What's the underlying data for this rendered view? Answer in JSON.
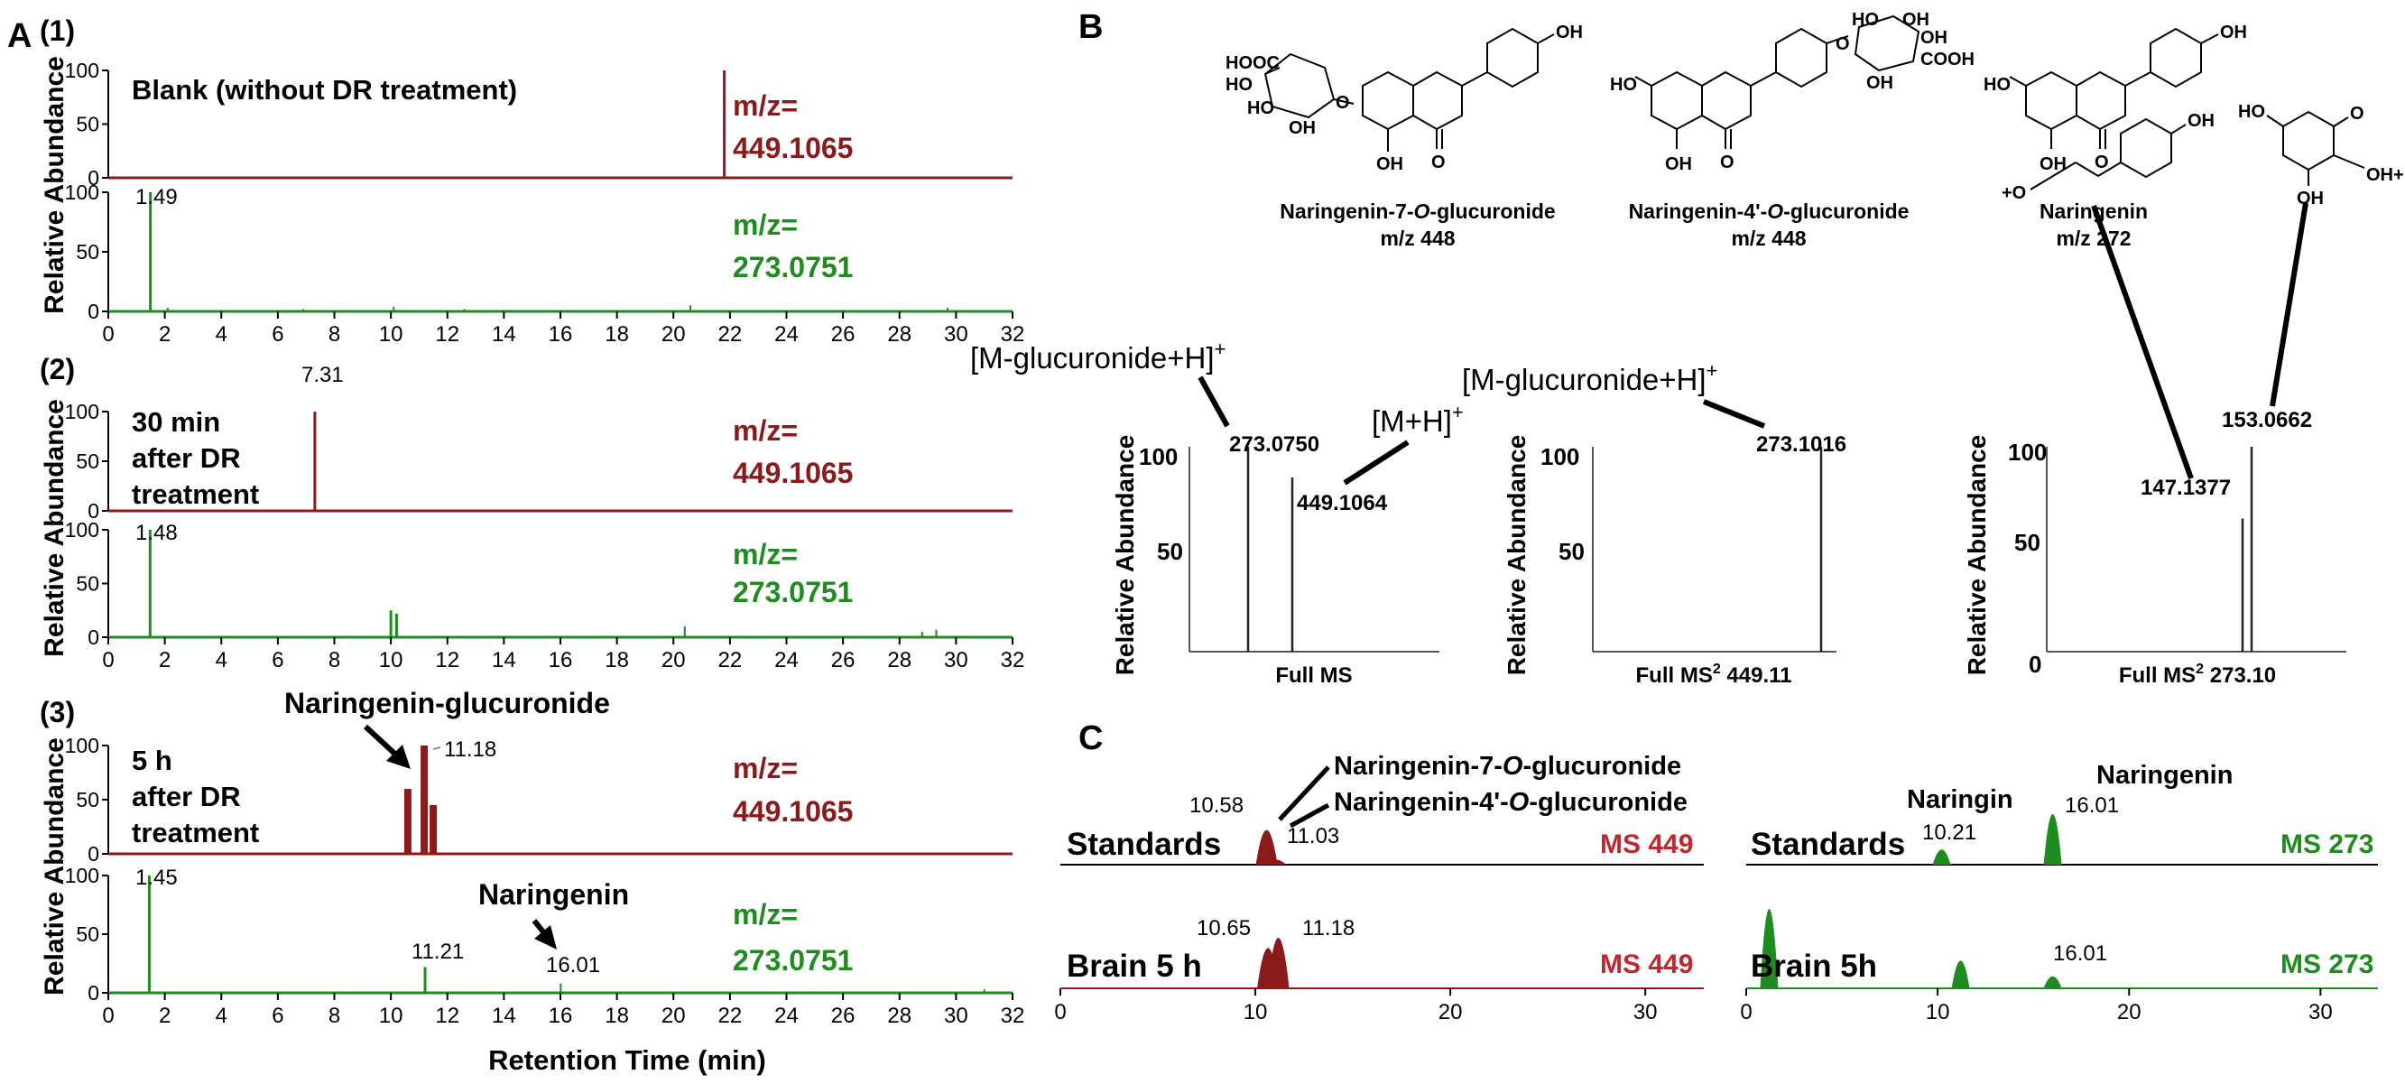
{
  "panel_letters": {
    "a": "A",
    "b": "B",
    "c": "C"
  },
  "colors": {
    "red": "#8b1a1a",
    "green": "#1e8c1e",
    "black": "#000000"
  },
  "panel_a": {
    "y_label": "Relative Abundance",
    "x_label": "Retention Time (min)",
    "x_ticks": [
      "0",
      "2",
      "4",
      "6",
      "8",
      "10",
      "12",
      "14",
      "16",
      "18",
      "20",
      "22",
      "24",
      "26",
      "28",
      "30",
      "32"
    ],
    "y_ticks": [
      "0",
      "50",
      "100"
    ],
    "mz_label": "m/z=",
    "mz_red": "449.1065",
    "mz_green": "273.0751",
    "rows": [
      {
        "num": "(1)",
        "cond": [
          "Blank (without DR treatment)"
        ],
        "red_peak": "",
        "green_peak": "1.49"
      },
      {
        "num": "(2)",
        "cond": [
          "30 min",
          "after DR",
          "treatment"
        ],
        "red_peak": "7.31",
        "green_peak": "1.48"
      },
      {
        "num": "(3)",
        "cond": [
          "5 h",
          "after DR",
          "treatment"
        ],
        "red_peak": "11.18",
        "green_peak": "1.45",
        "green_peak2": "11.21",
        "green_peak3": "16.01"
      }
    ],
    "annot_glucuronide": "Naringenin-glucuronide",
    "annot_naringenin": "Naringenin"
  },
  "panel_b": {
    "compounds": [
      {
        "name": "Naringenin-7-",
        "name_it": "O",
        "name_end": "-glucuronide",
        "mz": "m/z  448"
      },
      {
        "name": "Naringenin-4'-",
        "name_it": "O",
        "name_end": "-glucuronide",
        "mz": "m/z  448"
      },
      {
        "name": "Naringenin",
        "name_it": "",
        "name_end": "",
        "mz": "m/z  272"
      }
    ],
    "atoms": {
      "oh": "OH",
      "ho": "HO",
      "o": "O",
      "hooc": "HOOC",
      "cooh": "COOH",
      "ion_left": "+O",
      "ion_right": "OH+"
    },
    "y_label": "Relative Abundance",
    "ticks": {
      "t100": "100",
      "t50": "50",
      "t0": "0"
    },
    "spectra": [
      {
        "label": "Full MS",
        "peaks": [
          "273.0750",
          "449.1064"
        ],
        "ions": [
          "[M-glucuronide+H]+",
          "[M+H]+"
        ]
      },
      {
        "label": "Full MS2 449.11",
        "peaks": [
          "273.1016"
        ],
        "ions": [
          "[M-glucuronide+H]+"
        ]
      },
      {
        "label": "Full MS2 273.10",
        "peaks": [
          "147.1377",
          "153.0662"
        ],
        "ions": []
      }
    ]
  },
  "panel_c": {
    "compound_labels": [
      "Naringenin-7-O-glucuronide",
      "Naringenin-4'-O-glucuronide"
    ],
    "left": {
      "row1_label": "Standards",
      "row2_label": "Brain 5 h",
      "ms": "MS 449",
      "peaks1": [
        "10.58",
        "11.03"
      ],
      "peaks2": [
        "10.65",
        "11.18"
      ],
      "x_ticks": [
        "0",
        "10",
        "20",
        "30"
      ]
    },
    "right": {
      "row1_label": "Standards",
      "row2_label": "Brain 5h",
      "ms": "MS 273",
      "naringin": "Naringin",
      "naringenin": "Naringenin",
      "peaks1": [
        "10.21",
        "16.01"
      ],
      "peaks2": [
        "16.01"
      ],
      "x_ticks": [
        "0",
        "10",
        "20",
        "30"
      ]
    }
  },
  "chart_data": [
    {
      "type": "line",
      "title": "Panel A (1) Blank (without DR treatment)",
      "xlabel": "Retention Time (min)",
      "ylabel": "Relative Abundance",
      "xlim": [
        0,
        32
      ],
      "ylim": [
        0,
        100
      ],
      "series": [
        {
          "name": "m/z= 449.1065",
          "x": [
            21.8
          ],
          "y": [
            100
          ]
        },
        {
          "name": "m/z= 273.0751",
          "x": [
            1.49,
            2.1,
            6.9,
            10.1,
            12.6,
            20.6,
            29.7
          ],
          "y": [
            100,
            3,
            2,
            4,
            2,
            5,
            3
          ]
        }
      ]
    },
    {
      "type": "line",
      "title": "Panel A (2) 30 min after DR treatment",
      "xlabel": "Retention Time (min)",
      "ylabel": "Relative Abundance",
      "xlim": [
        0,
        32
      ],
      "ylim": [
        0,
        100
      ],
      "series": [
        {
          "name": "m/z= 449.1065",
          "x": [
            7.31
          ],
          "y": [
            100
          ]
        },
        {
          "name": "m/z= 273.0751",
          "x": [
            1.48,
            10.0,
            10.2,
            20.4,
            28.8,
            29.3
          ],
          "y": [
            100,
            25,
            22,
            10,
            5,
            7
          ]
        }
      ]
    },
    {
      "type": "line",
      "title": "Panel A (3) 5 h after DR treatment",
      "xlabel": "Retention Time (min)",
      "ylabel": "Relative Abundance",
      "xlim": [
        0,
        32
      ],
      "ylim": [
        0,
        100
      ],
      "series": [
        {
          "name": "m/z= 449.1065",
          "x": [
            10.6,
            11.18,
            11.5
          ],
          "y": [
            60,
            100,
            45
          ]
        },
        {
          "name": "m/z= 273.0751",
          "x": [
            1.45,
            11.21,
            16.01,
            31.0
          ],
          "y": [
            100,
            22,
            8,
            3
          ]
        }
      ]
    },
    {
      "type": "bar",
      "title": "Full MS",
      "ylabel": "Relative Abundance",
      "categories": [
        "273.0750",
        "449.1064"
      ],
      "values": [
        100,
        85
      ]
    },
    {
      "type": "bar",
      "title": "Full MS2 449.11",
      "ylabel": "Relative Abundance",
      "categories": [
        "273.1016"
      ],
      "values": [
        100
      ]
    },
    {
      "type": "bar",
      "title": "Full MS2 273.10",
      "ylabel": "Relative Abundance",
      "categories": [
        "147.1377",
        "153.0662"
      ],
      "values": [
        65,
        100
      ]
    },
    {
      "type": "line",
      "title": "Panel C MS 449",
      "xlim": [
        0,
        33
      ],
      "series": [
        {
          "name": "Standards",
          "x": [
            10.58,
            11.03
          ],
          "y": [
            100,
            15
          ]
        },
        {
          "name": "Brain 5 h",
          "x": [
            10.65,
            11.18
          ],
          "y": [
            80,
            100
          ]
        }
      ]
    },
    {
      "type": "line",
      "title": "Panel C MS 273",
      "xlim": [
        0,
        33
      ],
      "series": [
        {
          "name": "Standards",
          "x": [
            10.21,
            16.01
          ],
          "y": [
            30,
            100
          ]
        },
        {
          "name": "Brain 5h",
          "x": [
            1.2,
            11.2,
            16.01
          ],
          "y": [
            100,
            35,
            15
          ]
        }
      ]
    }
  ]
}
